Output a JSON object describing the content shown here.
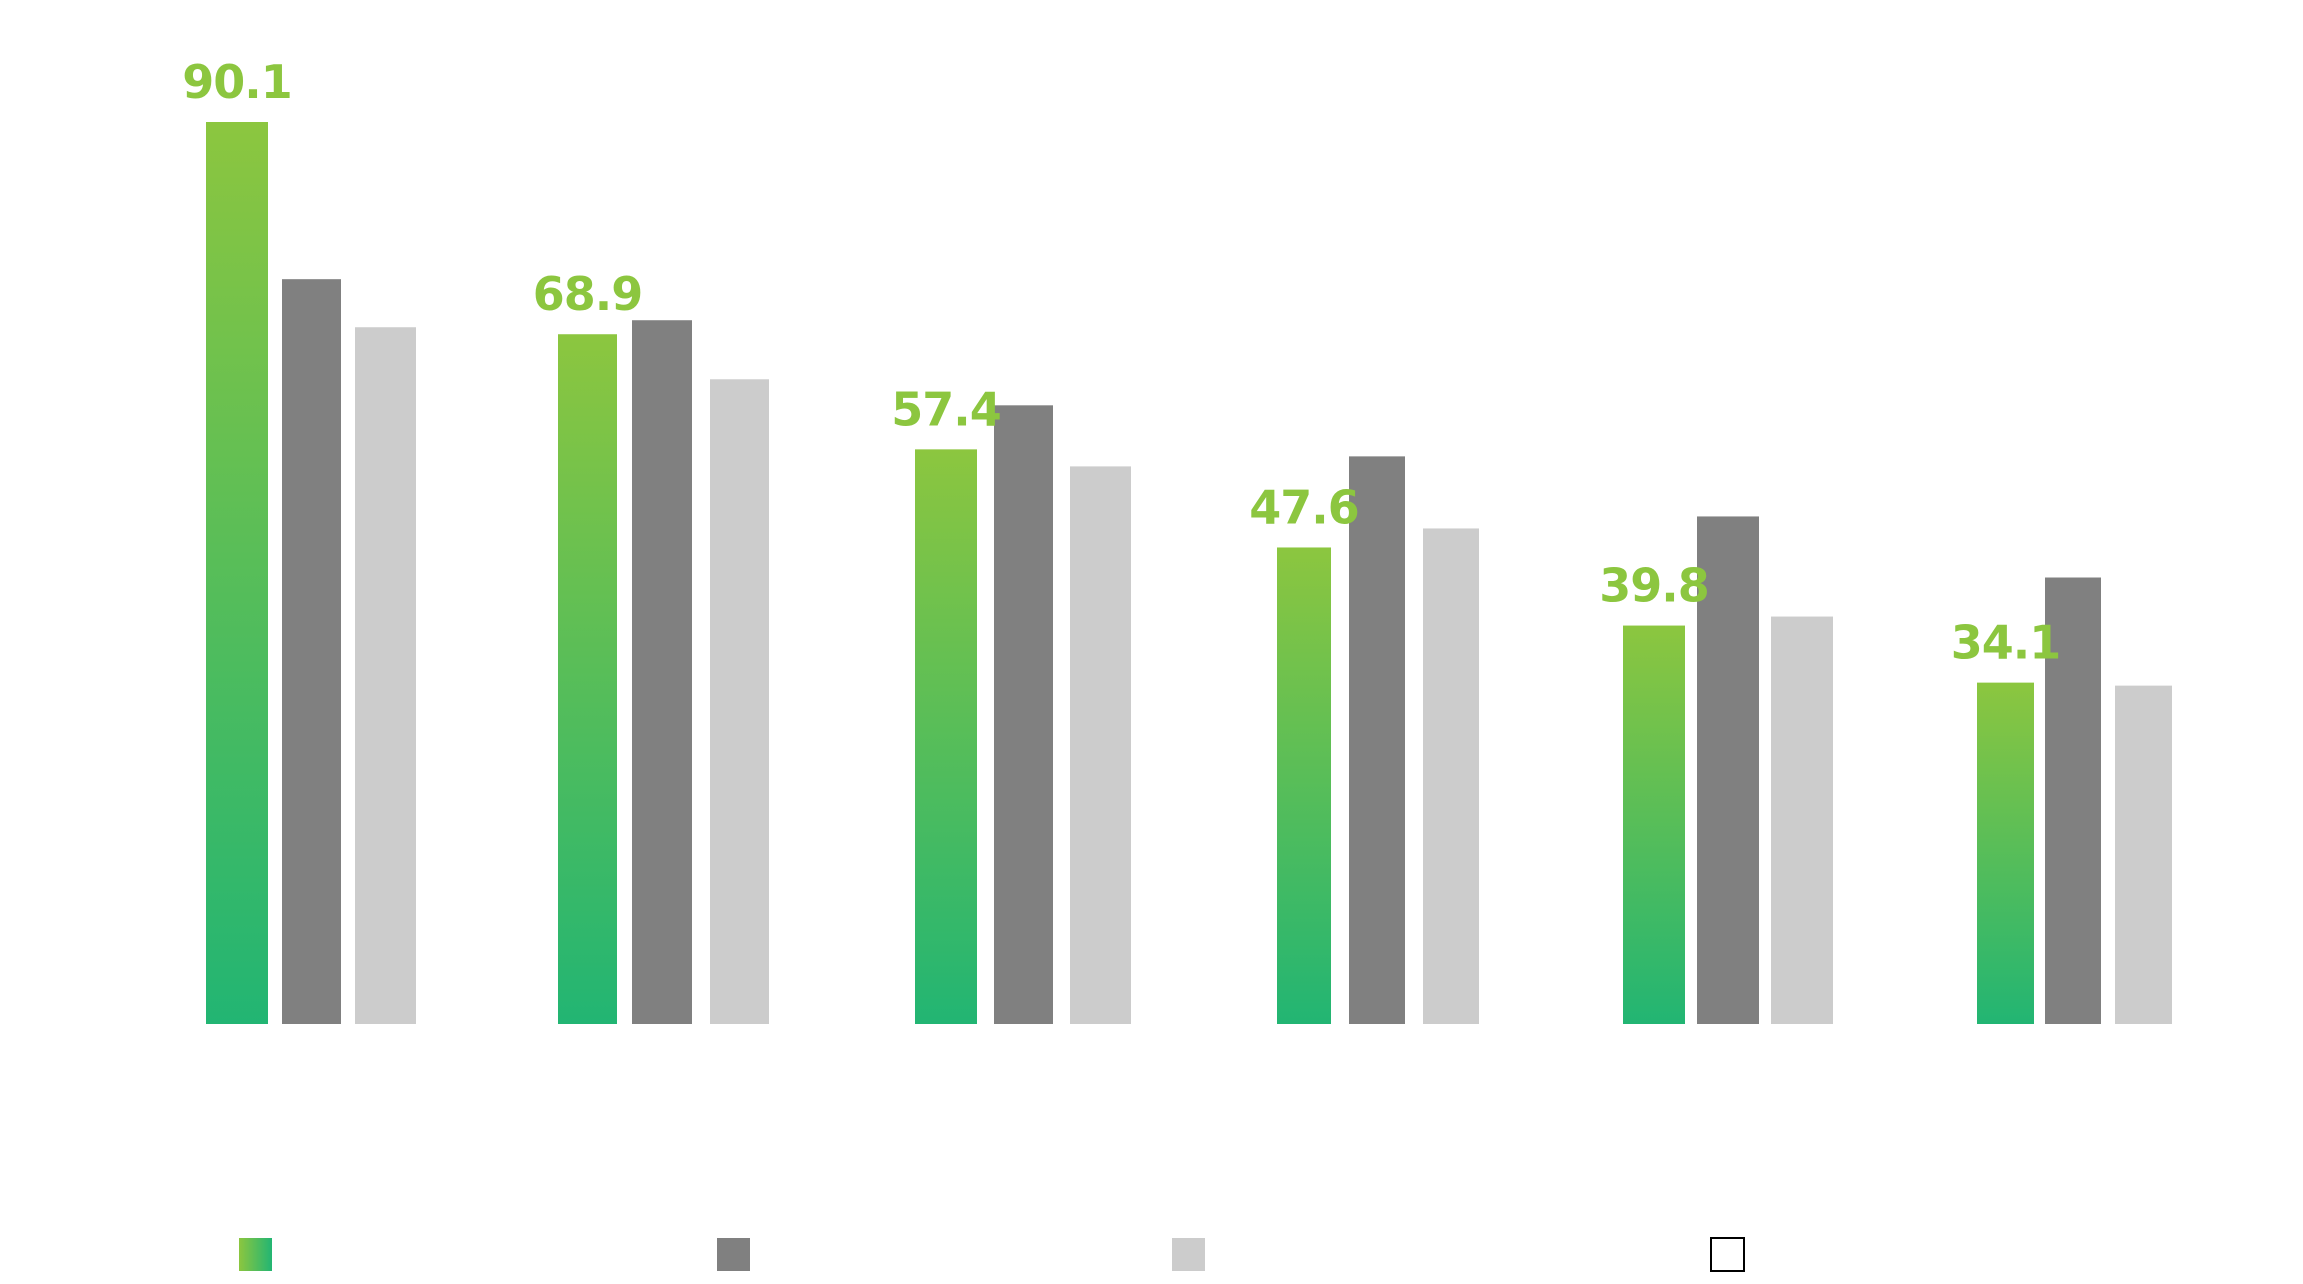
{
  "chart_data": {
    "type": "bar",
    "categories": [
      "",
      "",
      "",
      "",
      "",
      ""
    ],
    "series": [
      {
        "values": [
          90.1,
          68.9,
          57.4,
          47.6,
          39.8,
          34.1
        ],
        "labeled": true
      },
      {
        "values": [
          74.4,
          70.3,
          61.8,
          56.7,
          50.7,
          44.6
        ],
        "labeled": false
      },
      {
        "values": [
          69.6,
          64.4,
          55.7,
          49.5,
          40.7,
          33.8
        ],
        "labeled": false
      }
    ],
    "data_labels": [
      "90.1",
      "68.9",
      "57.4",
      "47.6",
      "39.8",
      "34.1"
    ],
    "legend": {
      "placement": "bottom",
      "entries": [
        {
          "name": ""
        },
        {
          "name": ""
        },
        {
          "name": ""
        },
        {
          "name": ""
        }
      ]
    },
    "ylim": [
      0,
      90.1
    ],
    "grid": false,
    "axes_visible": false
  },
  "colors": {
    "series_gradient_top": "#8cc63f",
    "series_gradient_bottom": "#22b573",
    "series_2": "#808080",
    "series_3": "#cccccc",
    "label_color": "#8cc63f",
    "legend_empty_border": "#000000",
    "legend_empty_fill": "#ffffff"
  }
}
